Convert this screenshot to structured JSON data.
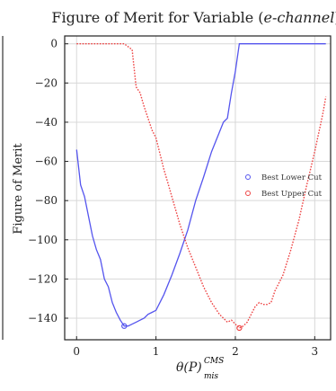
{
  "chart_data": {
    "type": "line",
    "title": "Figure of Merit for Variable (e-channel)",
    "title_parts": {
      "prefix": "Figure of Merit for Variable (",
      "italic": "e-channel",
      "suffix": ")"
    },
    "xlabel": "θ(P)",
    "xlabel_sup": "CMS",
    "xlabel_sub": "mis",
    "ylabel": "Figure of Merit",
    "xlim": [
      -0.15,
      3.2
    ],
    "ylim": [
      -151,
      4
    ],
    "xticks": [
      0,
      1,
      2,
      3
    ],
    "yticks": [
      0,
      -20,
      -40,
      -60,
      -80,
      -100,
      -120,
      -140
    ],
    "xtick_labels": [
      "0",
      "1",
      "2",
      "3"
    ],
    "ytick_labels": [
      "0",
      "−20",
      "−40",
      "−60",
      "−80",
      "−100",
      "−120",
      "−140"
    ],
    "grid": true,
    "legend_position": "right",
    "series": [
      {
        "name": "Best Lower Cut",
        "color": "#5555ee",
        "style": "solid",
        "marker_at_min": true,
        "x": [
          0.0,
          0.05,
          0.1,
          0.15,
          0.2,
          0.25,
          0.3,
          0.35,
          0.4,
          0.45,
          0.5,
          0.55,
          0.6,
          0.65,
          0.7,
          0.75,
          0.8,
          0.85,
          0.9,
          0.95,
          1.0,
          1.05,
          1.1,
          1.2,
          1.3,
          1.4,
          1.5,
          1.6,
          1.7,
          1.8,
          1.85,
          1.9,
          1.95,
          2.0,
          2.05,
          2.1,
          2.2,
          2.5,
          2.8,
          3.14
        ],
        "y": [
          -54,
          -72,
          -78,
          -88,
          -98,
          -105,
          -110,
          -120,
          -124,
          -132,
          -137,
          -141,
          -144,
          -144,
          -143,
          -142,
          -141,
          -140,
          -138,
          -137,
          -136,
          -132,
          -128,
          -118,
          -107,
          -95,
          -80,
          -68,
          -55,
          -45,
          -40,
          -38,
          -25,
          -14,
          0,
          0,
          0,
          0,
          0,
          0
        ]
      },
      {
        "name": "Best Upper Cut",
        "color": "#ee4444",
        "style": "dotted",
        "marker_at_min": true,
        "x": [
          0.0,
          0.2,
          0.4,
          0.6,
          0.7,
          0.75,
          0.8,
          0.85,
          0.9,
          0.95,
          1.0,
          1.05,
          1.1,
          1.2,
          1.3,
          1.4,
          1.5,
          1.6,
          1.7,
          1.8,
          1.9,
          1.95,
          2.0,
          2.05,
          2.1,
          2.15,
          2.2,
          2.25,
          2.3,
          2.35,
          2.4,
          2.45,
          2.5,
          2.6,
          2.7,
          2.8,
          2.9,
          3.0,
          3.1,
          3.14
        ],
        "y": [
          0,
          0,
          0,
          0,
          -3,
          -22,
          -25,
          -32,
          -38,
          -44,
          -48,
          -56,
          -64,
          -78,
          -92,
          -104,
          -114,
          -124,
          -132,
          -138,
          -142,
          -141,
          -143,
          -145,
          -144,
          -142,
          -138,
          -134,
          -132,
          -133,
          -133,
          -132,
          -126,
          -118,
          -105,
          -90,
          -72,
          -55,
          -36,
          -27
        ]
      }
    ]
  }
}
